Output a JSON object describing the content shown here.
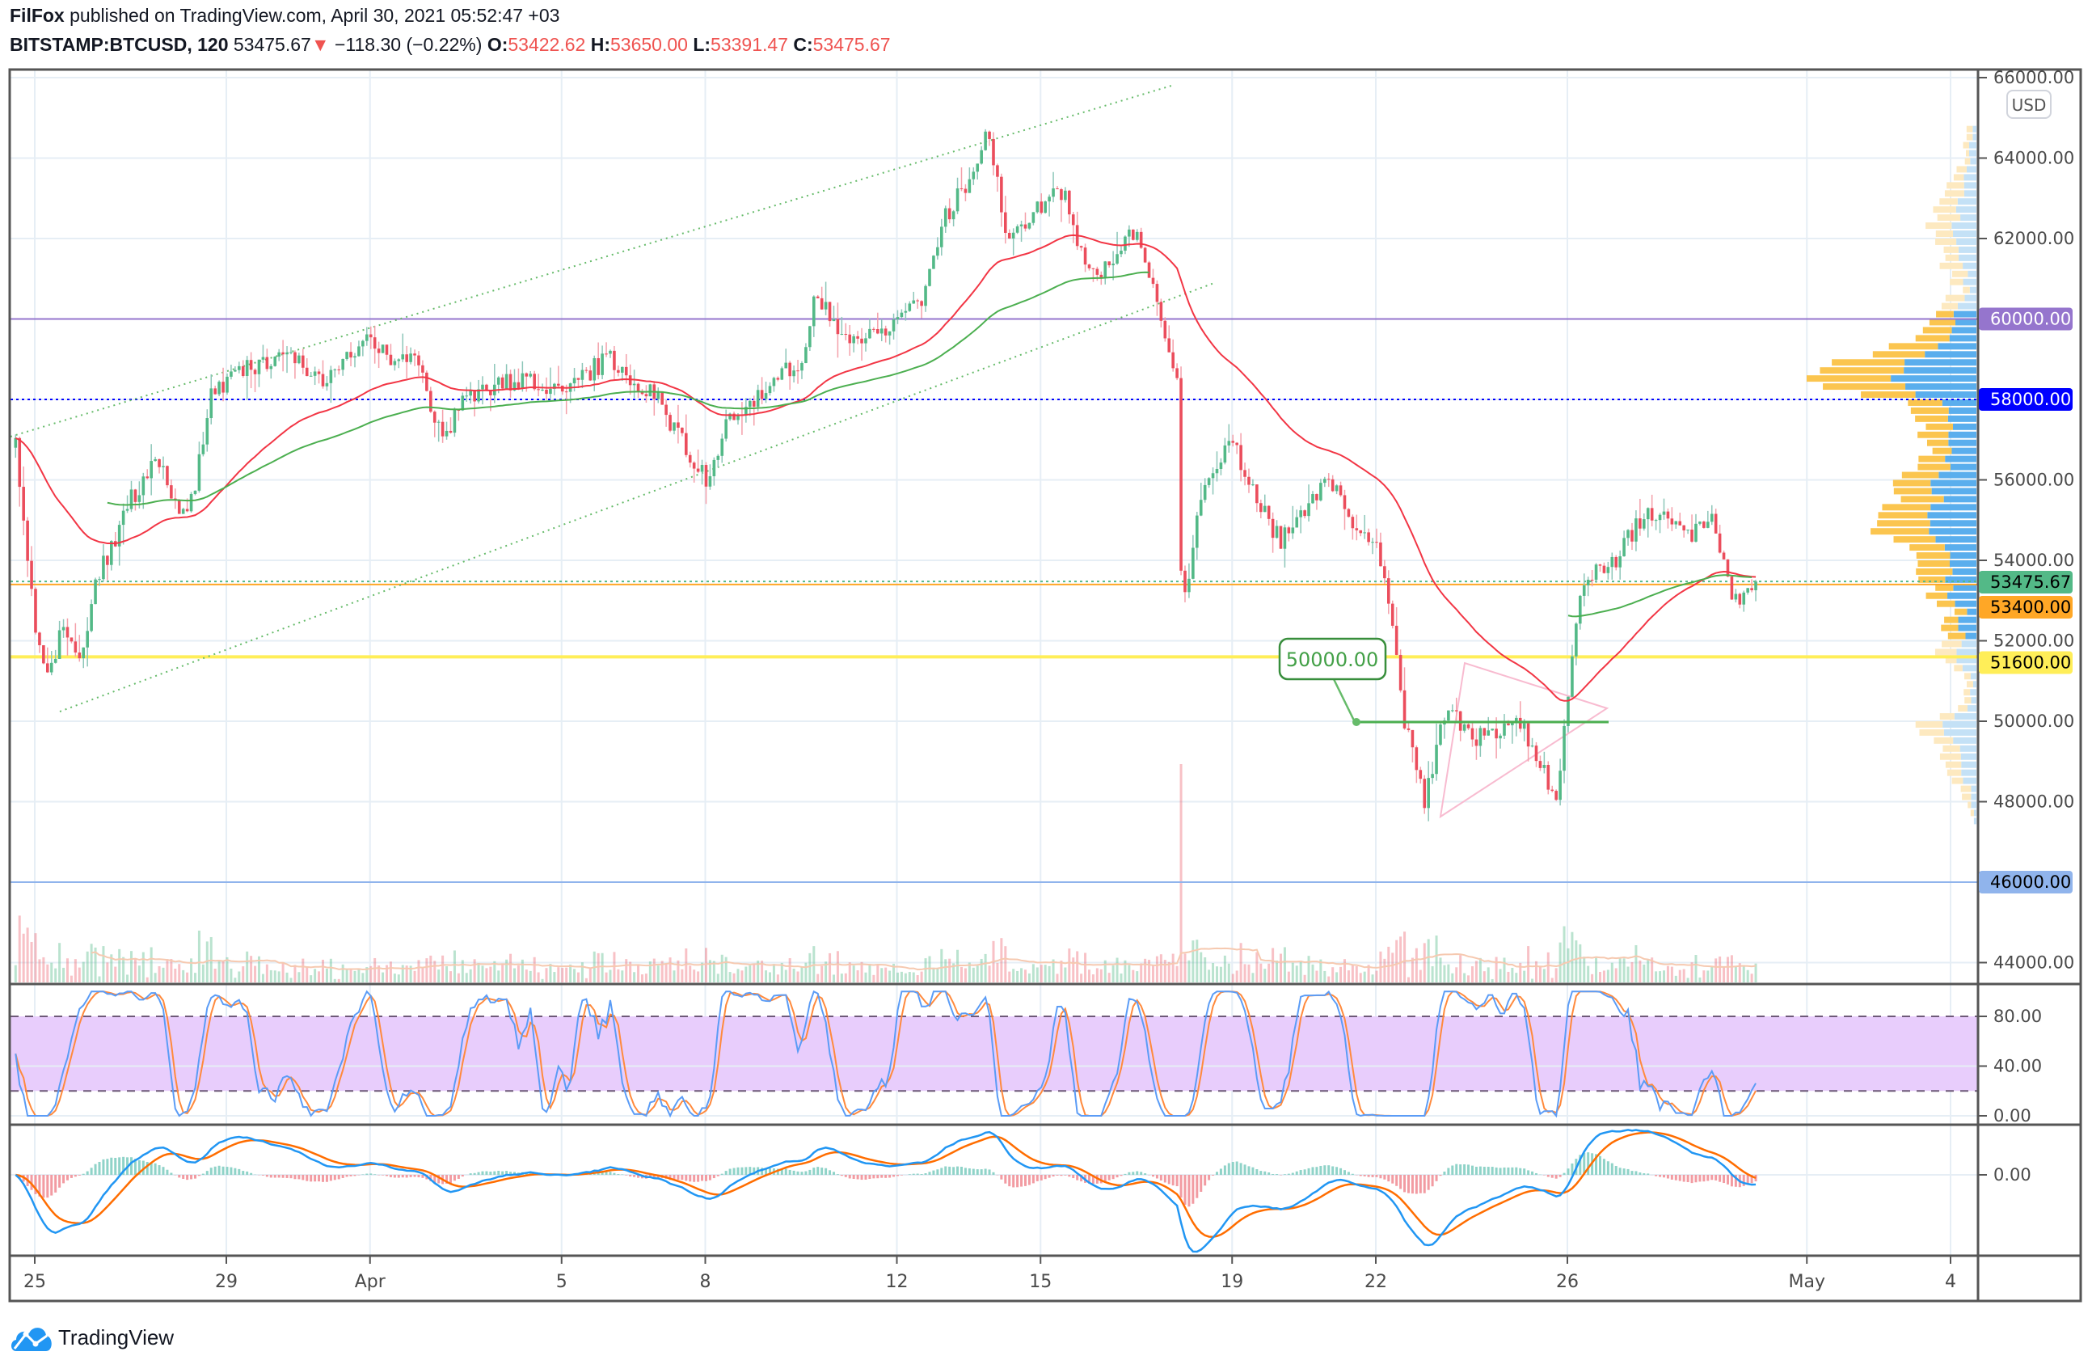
{
  "header": {
    "author": "FilFox",
    "published": "published on TradingView.com, April 30, 2021 05:52:47 +03",
    "symbol": "BITSTAMP:BTCUSD, 120",
    "last": "53475.67",
    "change_arrow": "▼",
    "change": "−118.30 (−0.22%)",
    "o_label": "O:",
    "o": "53422.62",
    "h_label": "H:",
    "h": "53650.00",
    "l_label": "L:",
    "l": "53391.47",
    "c_label": "C:",
    "c": "53475.67"
  },
  "currency_button": "USD",
  "footer": {
    "brand": "TradingView"
  },
  "colors": {
    "up": "#53b987",
    "down": "#eb4d5c",
    "ema_fast": "#f23645",
    "ema_slow": "#4caf50",
    "grid": "#e6eef5"
  },
  "chart_data": {
    "type": "candlestick",
    "interval_hours": 2,
    "title": "BITSTAMP:BTCUSD, 120",
    "price_axis": {
      "ylim": [
        43600,
        66200
      ],
      "ticks": [
        "66000.00",
        "64000.00",
        "62000.00",
        "60000.00",
        "58000.00",
        "56000.00",
        "54000.00",
        "52000.00",
        "50000.00",
        "48000.00",
        "46000.00",
        "44000.00"
      ]
    },
    "time_axis": {
      "ticks": [
        {
          "label": "25",
          "day": 0
        },
        {
          "label": "29",
          "day": 4
        },
        {
          "label": "Apr",
          "day": 7
        },
        {
          "label": "5",
          "day": 11
        },
        {
          "label": "8",
          "day": 14
        },
        {
          "label": "12",
          "day": 18
        },
        {
          "label": "15",
          "day": 21
        },
        {
          "label": "19",
          "day": 25
        },
        {
          "label": "22",
          "day": 28
        },
        {
          "label": "26",
          "day": 32
        },
        {
          "label": "May",
          "day": 37
        },
        {
          "label": "4",
          "day": 40
        }
      ]
    },
    "close_keypoints": [
      [
        -0.4,
        56800
      ],
      [
        0,
        52500
      ],
      [
        0.3,
        51000
      ],
      [
        0.6,
        52500
      ],
      [
        1.0,
        51500
      ],
      [
        1.3,
        53500
      ],
      [
        2.0,
        55500
      ],
      [
        2.5,
        56500
      ],
      [
        3.2,
        55000
      ],
      [
        3.7,
        58200
      ],
      [
        4.5,
        58800
      ],
      [
        5.2,
        59200
      ],
      [
        6.0,
        58500
      ],
      [
        7.0,
        59500
      ],
      [
        7.5,
        58800
      ],
      [
        8.0,
        59000
      ],
      [
        8.5,
        57000
      ],
      [
        9.0,
        58000
      ],
      [
        10.0,
        58500
      ],
      [
        11,
        58300
      ],
      [
        12,
        59000
      ],
      [
        13,
        58000
      ],
      [
        14,
        56000
      ],
      [
        14.5,
        57500
      ],
      [
        15,
        58000
      ],
      [
        16,
        59000
      ],
      [
        16.3,
        60500
      ],
      [
        17,
        59500
      ],
      [
        18,
        59800
      ],
      [
        18.5,
        60500
      ],
      [
        19,
        62500
      ],
      [
        19.5,
        63500
      ],
      [
        19.9,
        64800
      ],
      [
        20.3,
        62000
      ],
      [
        21,
        62800
      ],
      [
        21.5,
        63200
      ],
      [
        22,
        61000
      ],
      [
        22.5,
        61500
      ],
      [
        23,
        62300
      ],
      [
        23.4,
        60500
      ],
      [
        23.85,
        58500
      ],
      [
        23.95,
        52500
      ],
      [
        24.3,
        55500
      ],
      [
        25,
        57000
      ],
      [
        25.5,
        55500
      ],
      [
        26,
        54500
      ],
      [
        27,
        56000
      ],
      [
        27.5,
        55000
      ],
      [
        28,
        54500
      ],
      [
        28.3,
        53000
      ],
      [
        28.6,
        50000
      ],
      [
        29,
        48000
      ],
      [
        29.5,
        50500
      ],
      [
        30,
        49500
      ],
      [
        31,
        50000
      ],
      [
        31.8,
        48000
      ],
      [
        32,
        50500
      ],
      [
        32.3,
        53500
      ],
      [
        33,
        54000
      ],
      [
        33.5,
        55000
      ],
      [
        34,
        55300
      ],
      [
        34.5,
        54500
      ],
      [
        35,
        55000
      ],
      [
        35.5,
        53000
      ],
      [
        35.9,
        53475.67
      ]
    ],
    "horizontal_levels": [
      {
        "price": 60000,
        "label": "60000.00",
        "color": "#9575cd",
        "style": "solid"
      },
      {
        "price": 58000,
        "label": "58000.00",
        "color": "#0000ff",
        "style": "dotted"
      },
      {
        "price": 53475.67,
        "label": "53475.67",
        "color": "#53b987",
        "style": "dotted"
      },
      {
        "price": 53400,
        "label": "53400.00",
        "color": "#ffa726",
        "style": "solid"
      },
      {
        "price": 51600,
        "label": "51600.00",
        "color": "#ffee58",
        "style": "solid"
      },
      {
        "price": 46000,
        "label": "46000.00",
        "color": "#90b4ec",
        "style": "solid"
      }
    ],
    "annotation": {
      "label": "50000.00",
      "price": 50000
    },
    "indicators": {
      "ema_fast": 50,
      "ema_slow": 100,
      "stoch_rsi": {
        "ticks": [
          "80.00",
          "40.00",
          "0.00"
        ],
        "upper": 80,
        "lower": 20
      },
      "macd": {
        "fast": 12,
        "slow": 26,
        "signal": 9,
        "ticks": [
          "0.00"
        ]
      }
    }
  }
}
